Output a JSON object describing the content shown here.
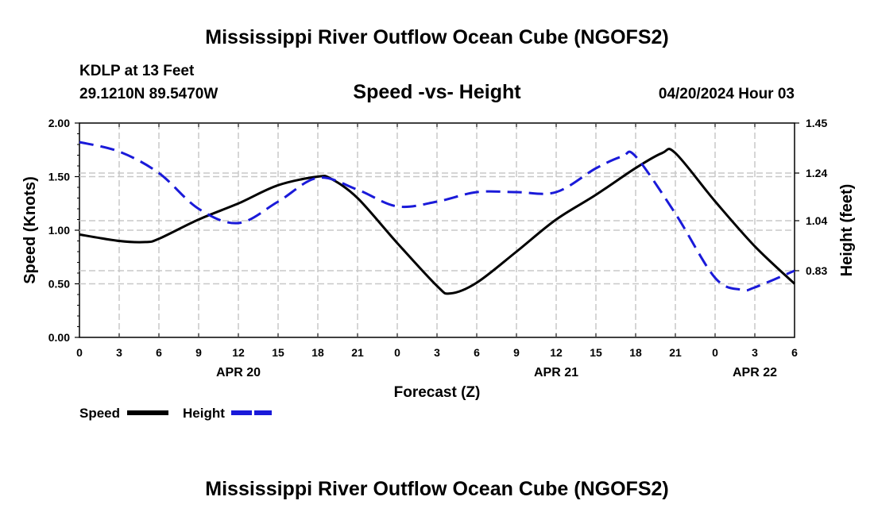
{
  "header": {
    "title": "Mississippi River Outflow Ocean Cube (NGOFS2)",
    "station": "KDLP at 13 Feet",
    "coords": "29.1210N  89.5470W",
    "datetime": "04/20/2024 Hour 03",
    "footer_title": "Mississippi River Outflow Ocean Cube (NGOFS2)"
  },
  "chart_data": {
    "type": "line",
    "title": "Speed -vs- Height",
    "xlabel": "Forecast (Z)",
    "ylabel_left": "Speed (Knots)",
    "ylabel_right": "Height (feet)",
    "xlim": [
      0,
      54
    ],
    "ylim_left": [
      0,
      2
    ],
    "ylim_right": [
      0.55,
      1.45
    ],
    "x_ticks": [
      0,
      3,
      6,
      9,
      12,
      15,
      18,
      21,
      24,
      27,
      30,
      33,
      36,
      39,
      42,
      45,
      48,
      51,
      54
    ],
    "x_tick_labels": [
      "0",
      "3",
      "6",
      "9",
      "12",
      "15",
      "18",
      "21",
      "0",
      "3",
      "6",
      "9",
      "12",
      "15",
      "18",
      "21",
      "0",
      "3",
      "6"
    ],
    "y_left_ticks": [
      0,
      0.5,
      1.0,
      1.5,
      2.0
    ],
    "y_left_tick_labels": [
      "0.00",
      "0.50",
      "1.00",
      "1.50",
      "2.00"
    ],
    "y_right_ticks": [
      0.83,
      1.04,
      1.24,
      1.45
    ],
    "y_right_tick_labels": [
      "0.83",
      "1.04",
      "1.24",
      "1.45"
    ],
    "date_labels": [
      {
        "x": 12,
        "label": "APR 20"
      },
      {
        "x": 36,
        "label": "APR 21"
      },
      {
        "x": 51,
        "label": "APR 22"
      }
    ],
    "grid": true,
    "legend_position": "bottom-left",
    "series": [
      {
        "name": "Speed",
        "axis": "left",
        "color": "#000000",
        "dash": "solid",
        "x": [
          0,
          3,
          5,
          6,
          9,
          12,
          15,
          18,
          19,
          21,
          24,
          27,
          28,
          30,
          33,
          36,
          39,
          42,
          44,
          45,
          48,
          51,
          54
        ],
        "y": [
          0.96,
          0.9,
          0.89,
          0.92,
          1.1,
          1.25,
          1.42,
          1.5,
          1.48,
          1.3,
          0.88,
          0.48,
          0.41,
          0.51,
          0.8,
          1.1,
          1.33,
          1.58,
          1.72,
          1.72,
          1.27,
          0.85,
          0.5
        ]
      },
      {
        "name": "Height",
        "axis": "right",
        "color": "#1a1ad9",
        "dash": "dashed",
        "x": [
          0,
          3,
          6,
          9,
          12,
          15,
          18,
          21,
          24,
          27,
          30,
          33,
          36,
          39,
          41,
          42,
          45,
          48,
          50,
          51,
          54
        ],
        "y": [
          1.37,
          1.33,
          1.24,
          1.09,
          1.03,
          1.12,
          1.22,
          1.17,
          1.1,
          1.12,
          1.16,
          1.16,
          1.16,
          1.26,
          1.31,
          1.31,
          1.07,
          0.8,
          0.75,
          0.76,
          0.83
        ]
      }
    ]
  }
}
